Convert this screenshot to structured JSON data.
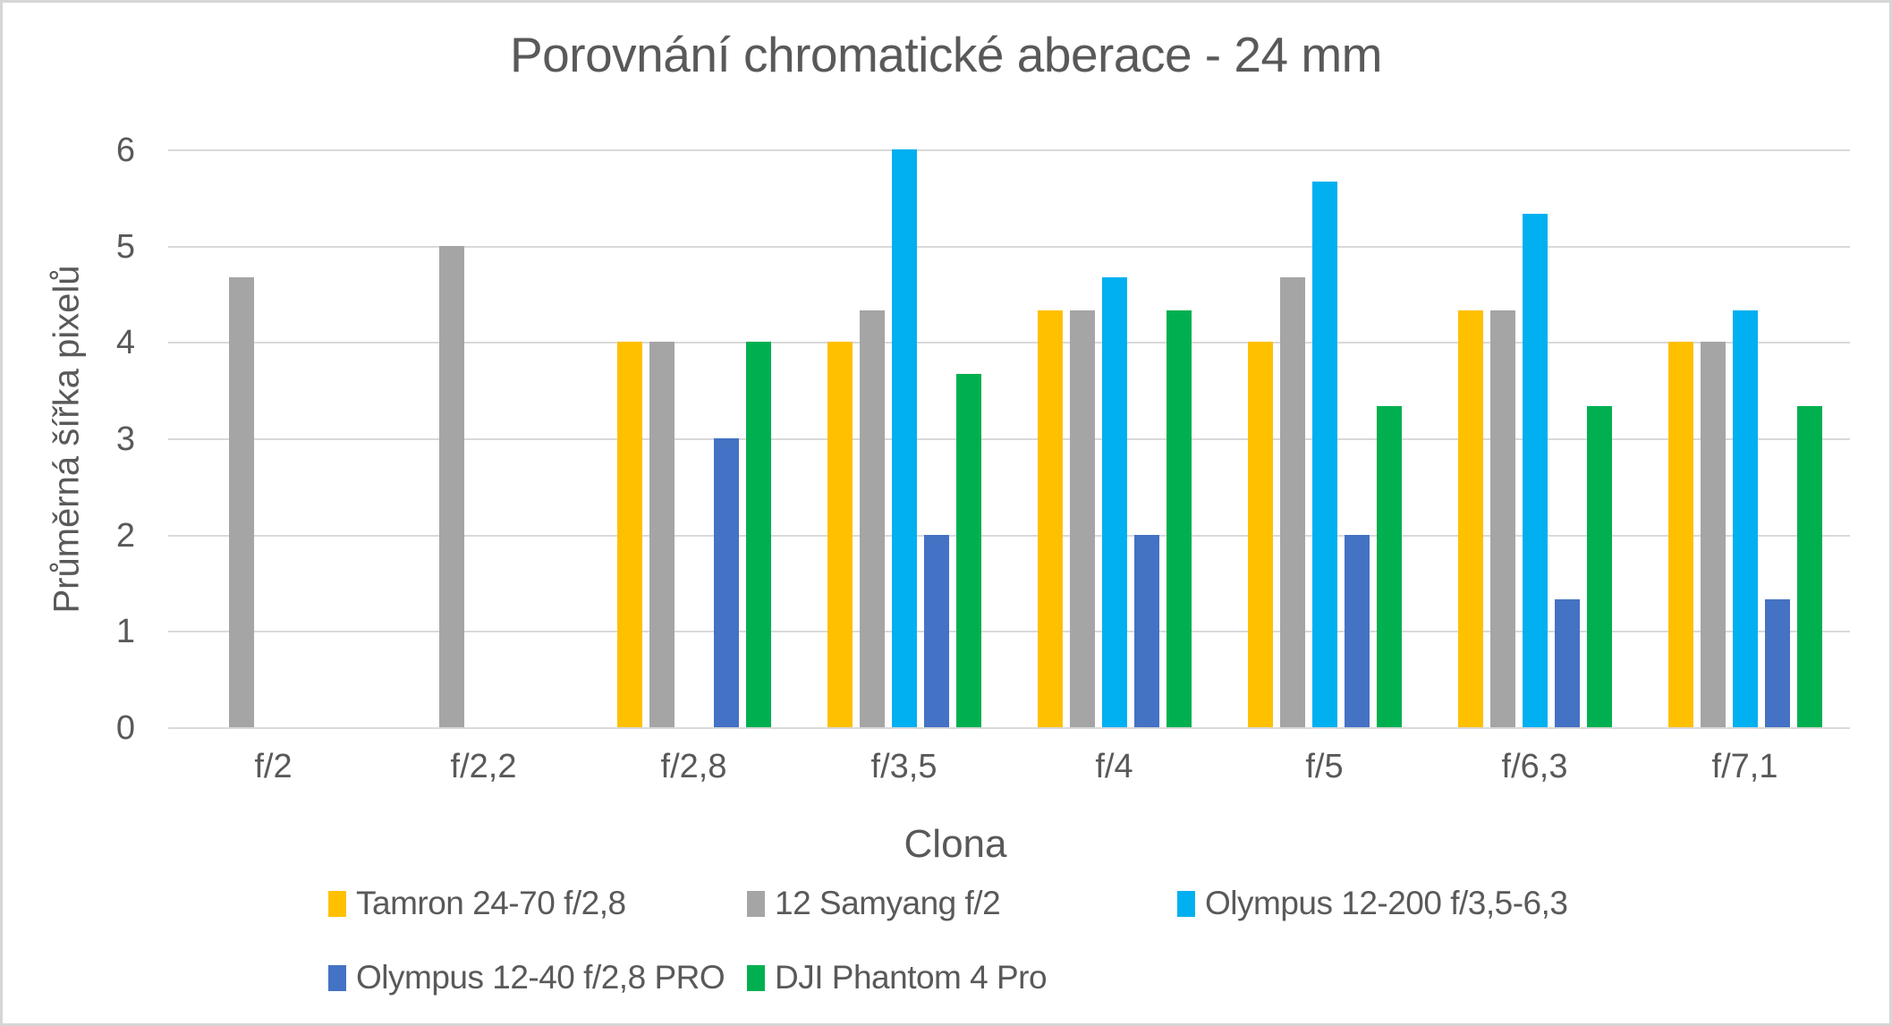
{
  "title": "Porovnání chromatické aberace - 24 mm",
  "chart_data": {
    "type": "bar",
    "title": "Porovnání chromatické aberace - 24 mm",
    "xlabel": "Clona",
    "ylabel": "Průměrná šířka pixelů",
    "ylim": [
      0,
      6
    ],
    "y_ticks": [
      0,
      1,
      2,
      3,
      4,
      5,
      6
    ],
    "grid": "horizontal",
    "legend_position": "bottom",
    "categories": [
      "f/2",
      "f/2,2",
      "f/2,8",
      "f/3,5",
      "f/4",
      "f/5",
      "f/6,3",
      "f/7,1"
    ],
    "series": [
      {
        "name": "Tamron 24-70 f/2,8",
        "color": "#FFC000",
        "values": [
          null,
          null,
          4,
          4,
          4.33,
          4,
          4.33,
          4
        ]
      },
      {
        "name": "12 Samyang f/2",
        "color": "#A5A5A5",
        "values": [
          4.67,
          5,
          4,
          4.33,
          4.33,
          4.67,
          4.33,
          4
        ]
      },
      {
        "name": "Olympus 12-200 f/3,5-6,3",
        "color": "#00B0F0",
        "values": [
          null,
          null,
          null,
          6,
          4.67,
          5.67,
          5.33,
          4.33
        ]
      },
      {
        "name": "Olympus 12-40 f/2,8 PRO",
        "color": "#4472C4",
        "values": [
          null,
          null,
          3,
          2,
          2,
          2,
          1.33,
          1.33
        ]
      },
      {
        "name": "DJI Phantom 4 Pro",
        "color": "#00B050",
        "values": [
          null,
          null,
          4,
          3.67,
          4.33,
          3.33,
          3.33,
          3.33
        ]
      }
    ]
  },
  "colors": {
    "text": "#595959",
    "gridline": "#D9D9D9",
    "background": "#FFFFFF",
    "frame_border": "#D6D6D6"
  }
}
